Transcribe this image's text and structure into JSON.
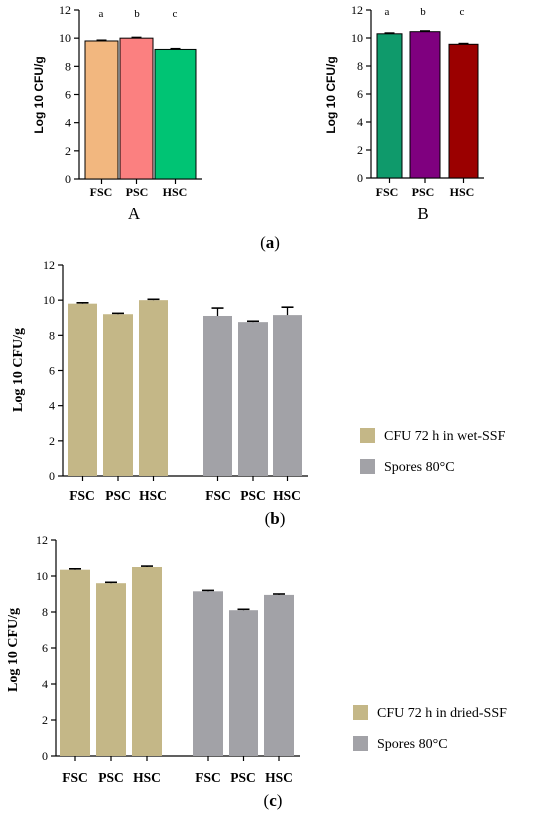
{
  "chart_data": [
    {
      "id": "a_A",
      "type": "bar",
      "panel_label": "A",
      "ylabel": "Log 10 CFU/g",
      "ylim": [
        0,
        12
      ],
      "yticks": [
        0,
        2,
        4,
        6,
        8,
        10,
        12
      ],
      "categories": [
        "FSC",
        "PSC",
        "HSC"
      ],
      "values": [
        9.8,
        10.0,
        9.2
      ],
      "errors": [
        0.05,
        0.05,
        0.05
      ],
      "letters": [
        "a",
        "b",
        "c"
      ],
      "colors": [
        "#f2b77f",
        "#fb8080",
        "#00c474"
      ]
    },
    {
      "id": "a_B",
      "type": "bar",
      "panel_label": "B",
      "ylabel": "Log 10 CFU/g",
      "ylim": [
        0,
        12
      ],
      "yticks": [
        0,
        2,
        4,
        6,
        8,
        10,
        12
      ],
      "categories": [
        "FSC",
        "PSC",
        "HSC"
      ],
      "values": [
        10.3,
        10.45,
        9.55
      ],
      "errors": [
        0.05,
        0.05,
        0.05
      ],
      "letters": [
        "a",
        "b",
        "c"
      ],
      "colors": [
        "#0f9a6b",
        "#7f007f",
        "#9b0000"
      ]
    },
    {
      "id": "b",
      "type": "bar",
      "ylabel": "Log 10 CFU/g",
      "ylim": [
        0,
        12
      ],
      "yticks": [
        0,
        2,
        4,
        6,
        8,
        10,
        12
      ],
      "categories": [
        "FSC",
        "PSC",
        "HSC"
      ],
      "series": [
        {
          "name": "CFU 72 h in wet-SSF",
          "color": "#c4b787",
          "values": [
            9.8,
            9.2,
            10.0
          ],
          "errors": [
            0.05,
            0.05,
            0.05
          ]
        },
        {
          "name": "Spores 80°C",
          "color": "#a2a2a7",
          "values": [
            9.1,
            8.75,
            9.15
          ],
          "errors": [
            0.45,
            0.05,
            0.45
          ]
        }
      ]
    },
    {
      "id": "c",
      "type": "bar",
      "ylabel": "Log 10 CFU/g",
      "ylim": [
        0,
        12
      ],
      "yticks": [
        0,
        2,
        4,
        6,
        8,
        10,
        12
      ],
      "categories": [
        "FSC",
        "PSC",
        "HSC"
      ],
      "series": [
        {
          "name": "CFU 72 h in dried-SSF",
          "color": "#c4b787",
          "values": [
            10.35,
            9.6,
            10.5
          ],
          "errors": [
            0.05,
            0.05,
            0.05
          ]
        },
        {
          "name": "Spores 80°C",
          "color": "#a2a2a7",
          "values": [
            9.15,
            8.1,
            8.95
          ],
          "errors": [
            0.05,
            0.05,
            0.05
          ]
        }
      ]
    }
  ],
  "captions": {
    "a": "(a)",
    "b": "(b)",
    "c": "(c)"
  }
}
